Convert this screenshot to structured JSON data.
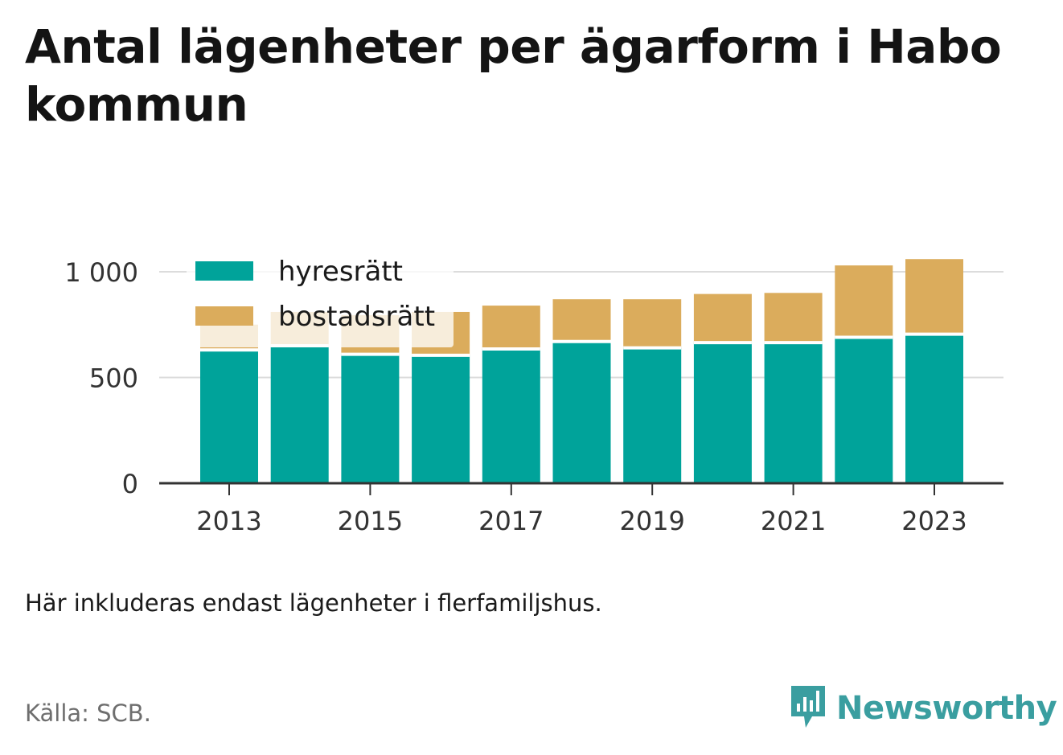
{
  "title": "Antal lägenheter per ägarform i Habo kommun",
  "note": "Här inkluderas endast lägenheter i flerfamiljshus.",
  "source": "Källa: SCB.",
  "brand": {
    "name": "Newsworthy",
    "icon": "newsworthy-logo-icon",
    "color": "#3a9ea0"
  },
  "chart_data": {
    "type": "bar",
    "stacked": true,
    "categories": [
      "2013",
      "2014",
      "2015",
      "2016",
      "2017",
      "2018",
      "2019",
      "2020",
      "2021",
      "2022",
      "2023"
    ],
    "x_tick_labels": [
      "2013",
      "2015",
      "2017",
      "2019",
      "2021",
      "2023"
    ],
    "series": [
      {
        "name": "hyresrätt",
        "color": "#00a39a",
        "values": [
          630,
          650,
          610,
          605,
          635,
          670,
          640,
          665,
          665,
          690,
          705
        ]
      },
      {
        "name": "bostadsrätt",
        "color": "#dbac5c",
        "values": [
          120,
          160,
          185,
          205,
          205,
          200,
          230,
          230,
          235,
          340,
          355
        ]
      }
    ],
    "y_ticks": [
      {
        "value": 0,
        "label": "0"
      },
      {
        "value": 500,
        "label": "500"
      },
      {
        "value": 1000,
        "label": "1 000"
      }
    ],
    "ylim": [
      0,
      1000
    ],
    "grid": true,
    "legend_position": "top-left"
  }
}
